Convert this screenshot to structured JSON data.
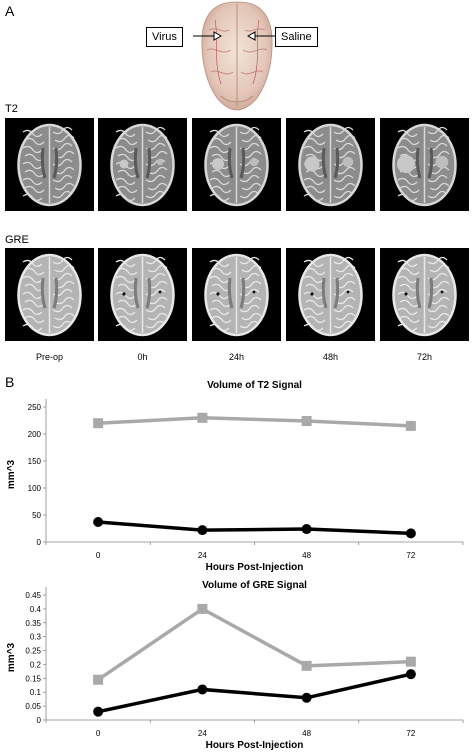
{
  "figure": {
    "panel_a": "A",
    "panel_b": "B",
    "labels": {
      "virus": "Virus",
      "saline": "Saline"
    },
    "rows": [
      {
        "label": "T2"
      },
      {
        "label": "GRE"
      }
    ],
    "timepoints": [
      "Pre-op",
      "0h",
      "24h",
      "48h",
      "72h"
    ]
  },
  "chart_data": [
    {
      "type": "line",
      "title": "Volume of T2 Signal",
      "xlabel": "Hours Post-Injection",
      "ylabel": "mm^3",
      "x": [
        0,
        24,
        48,
        72
      ],
      "xticks": [
        "0",
        "24",
        "48",
        "72"
      ],
      "ylim": [
        0,
        250
      ],
      "yticks": [
        "0",
        "50",
        "100",
        "150",
        "200",
        "250"
      ],
      "yticks_values": [
        0,
        50,
        100,
        150,
        200,
        250
      ],
      "grid": false,
      "series": [
        {
          "values": [
            220,
            230,
            224,
            215
          ],
          "color": "#a9a9a9",
          "marker": "square"
        },
        {
          "values": [
            37,
            22,
            24,
            16
          ],
          "color": "#000000",
          "marker": "circle"
        }
      ]
    },
    {
      "type": "line",
      "title": "Volume of GRE Signal",
      "xlabel": "Hours Post-Injection",
      "ylabel": "mm^3",
      "x": [
        0,
        24,
        48,
        72
      ],
      "xticks": [
        "0",
        "24",
        "48",
        "72"
      ],
      "ylim": [
        0,
        0.45
      ],
      "yticks": [
        "0",
        "0.05",
        "0.1",
        "0.15",
        "0.2",
        "0.25",
        "0.3",
        "0.35",
        "0.4",
        "0.45"
      ],
      "yticks_values": [
        0,
        0.05,
        0.1,
        0.15,
        0.2,
        0.25,
        0.3,
        0.35,
        0.4,
        0.45
      ],
      "grid": false,
      "series": [
        {
          "values": [
            0.145,
            0.4,
            0.195,
            0.21
          ],
          "color": "#a9a9a9",
          "marker": "square"
        },
        {
          "values": [
            0.03,
            0.11,
            0.08,
            0.165
          ],
          "color": "#000000",
          "marker": "circle"
        }
      ]
    }
  ]
}
